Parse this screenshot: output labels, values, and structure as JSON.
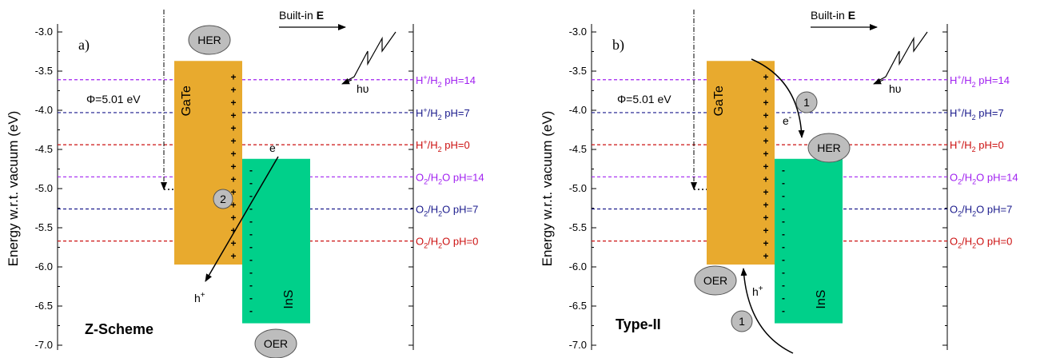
{
  "panels": [
    {
      "panel_label": "a)",
      "scheme_label": "Z-Scheme",
      "work_function": "Φ=5.01 eV",
      "builtin_label": "Built-in",
      "builtin_symbol": "E",
      "photon": "hυ",
      "electron": "e",
      "electron_sup": "-",
      "hole": "h",
      "hole_sup": "+",
      "her": "HER",
      "oer": "OER",
      "step_labels": [
        "2"
      ]
    },
    {
      "panel_label": "b)",
      "scheme_label": "Type-II",
      "work_function": "Φ=5.01 eV",
      "builtin_label": "Built-in",
      "builtin_symbol": "E",
      "photon": "hυ",
      "electron": "e",
      "electron_sup": "-",
      "hole": "h",
      "hole_sup": "+",
      "her": "HER",
      "oer": "OER",
      "step_labels": [
        "1",
        "1"
      ]
    }
  ],
  "chart_data": {
    "type": "band-diagram",
    "ylabel": "Energy w.r.t. vacuum (eV)",
    "ylim": [
      -7.2,
      -3.0
    ],
    "yticks": [
      -3.0,
      -3.5,
      -4.0,
      -4.5,
      -5.0,
      -5.5,
      -6.0,
      -6.5,
      -7.0
    ],
    "ytick_labels": [
      "-3.0",
      "-3.5",
      "-4.0",
      "-4.5",
      "-5.0",
      "-5.5",
      "-6.0",
      "-6.5",
      "-7.0"
    ],
    "fermi_level": -5.01,
    "materials": [
      {
        "name": "GaTe",
        "cbm": -3.37,
        "vbm": -5.97,
        "color": "#E8AA2E"
      },
      {
        "name": "InS",
        "cbm": -4.62,
        "vbm": -6.72,
        "color": "#00D08A"
      }
    ],
    "redox_levels": [
      {
        "species": "H",
        "sup": "+",
        "sep": "/H",
        "sub": "2",
        "ph": " pH=14",
        "value": -3.61,
        "color": "#A020F0"
      },
      {
        "species": "H",
        "sup": "+",
        "sep": "/H",
        "sub": "2",
        "ph": " pH=7",
        "value": -4.03,
        "color": "#1A1A8C"
      },
      {
        "species": "H",
        "sup": "+",
        "sep": "/H",
        "sub": "2",
        "ph": " pH=0",
        "value": -4.44,
        "color": "#CC1111"
      },
      {
        "species": "O",
        "sup": "",
        "sep": "",
        "sub": "2",
        "ph": "/H",
        "sub2": "2",
        "tail": "O pH=14",
        "value": -4.85,
        "color": "#A020F0"
      },
      {
        "species": "O",
        "sup": "",
        "sep": "",
        "sub": "2",
        "ph": "/H",
        "sub2": "2",
        "tail": "O pH=7",
        "value": -5.26,
        "color": "#1A1A8C"
      },
      {
        "species": "O",
        "sup": "",
        "sep": "",
        "sub": "2",
        "ph": "/H",
        "sub2": "2",
        "tail": "O pH=0",
        "value": -5.67,
        "color": "#CC1111"
      }
    ]
  }
}
